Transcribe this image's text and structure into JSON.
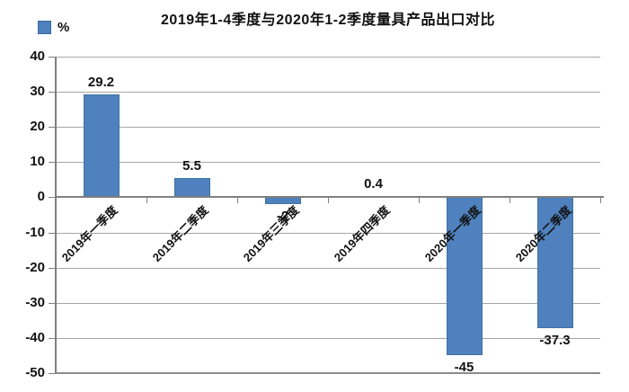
{
  "chart_data": {
    "type": "bar",
    "title": "2019年1-4季度与2020年1-2季度量具产品出口对比",
    "legend": {
      "label": "%",
      "position": "top-left"
    },
    "categories": [
      "2019年一季度",
      "2019年二季度",
      "2019年三季度",
      "2019年四季度",
      "2020年一季度",
      "2020年二季度"
    ],
    "values": [
      29.2,
      5.5,
      -2,
      0.4,
      -45,
      -37.3
    ],
    "value_labels": [
      "29.2",
      "5.5",
      "-2",
      "0.4",
      "-45",
      "-37.3"
    ],
    "xlabel": "",
    "ylabel": "%",
    "ylim": [
      -50,
      40
    ],
    "yticks": [
      40,
      30,
      20,
      10,
      0,
      -10,
      -20,
      -30,
      -40,
      -50
    ],
    "grid": true,
    "colors": {
      "bar_fill": "#4E81BD",
      "bar_border": "#41729F",
      "gridline": "#A6A6A6",
      "axis": "#7F7F7F",
      "text": "#111111",
      "background": "#FFFFFF"
    }
  }
}
